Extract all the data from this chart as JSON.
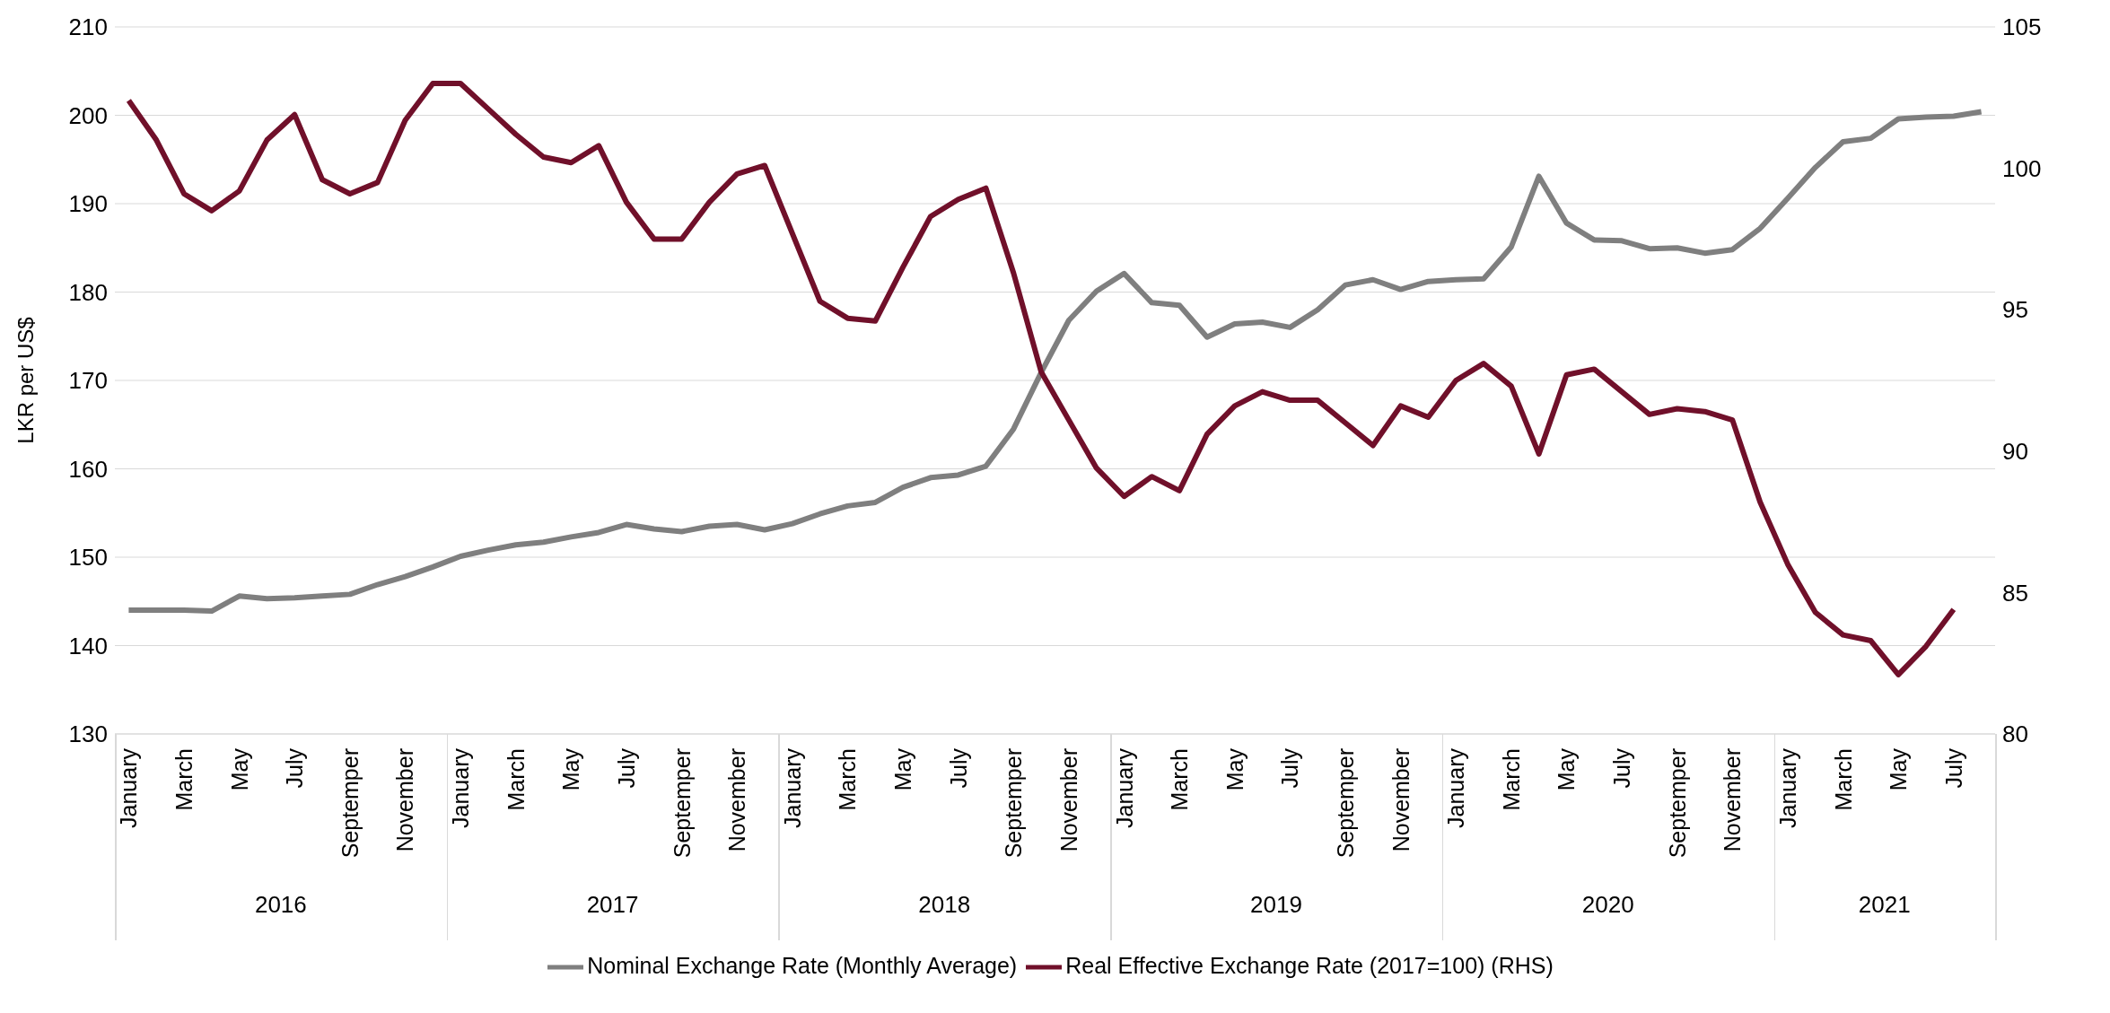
{
  "chart_data": {
    "type": "line",
    "ylabel": "LKR per US$",
    "categories": [
      "January",
      null,
      "March",
      null,
      "May",
      null,
      "July",
      null,
      "Septemper",
      null,
      "November",
      null,
      "January",
      null,
      "March",
      null,
      "May",
      null,
      "July",
      null,
      "Septemper",
      null,
      "November",
      null,
      "January",
      null,
      "March",
      null,
      "May",
      null,
      "July",
      null,
      "Septemper",
      null,
      "November",
      null,
      "January",
      null,
      "March",
      null,
      "May",
      null,
      "July",
      null,
      "Septemper",
      null,
      "November",
      null,
      "January",
      null,
      "March",
      null,
      "May",
      null,
      "July",
      null,
      "Septemper",
      null,
      "November",
      null,
      "January",
      null,
      "March",
      null,
      "May",
      null,
      "July",
      null
    ],
    "annotations": [
      "2016",
      "2017",
      "2018",
      "2019",
      "2020",
      "2021"
    ],
    "series": [
      {
        "name": "Nominal Exchange Rate (Monthly Average)",
        "color": "#7f7f7f",
        "values": [
          144,
          144,
          144,
          143.9,
          145.6,
          145.3,
          145.4,
          145.6,
          145.8,
          146.9,
          147.8,
          148.9,
          150.1,
          150.8,
          151.4,
          151.7,
          152.3,
          152.8,
          153.7,
          153.2,
          152.9,
          153.5,
          153.7,
          153.1,
          153.8,
          154.9,
          155.8,
          156.2,
          157.9,
          159.0,
          159.3,
          160.3,
          164.5,
          170.9,
          176.8,
          180.1,
          182.1,
          178.8,
          178.5,
          174.9,
          176.4,
          176.6,
          176.0,
          178.0,
          180.8,
          181.4,
          180.3,
          181.2,
          181.4,
          181.5,
          185.1,
          193.1,
          187.8,
          185.9,
          185.8,
          184.9,
          185.0,
          184.4,
          184.8,
          187.2,
          190.6,
          194.1,
          197.0,
          197.4,
          199.6,
          199.8,
          199.9,
          200.4
        ]
      },
      {
        "name": "Real Effective Exchange Rate (2017=100) (RHS)",
        "color": "#70102a",
        "axis": "y2",
        "values": [
          102.4,
          101.0,
          99.1,
          98.5,
          99.2,
          101.0,
          101.9,
          99.6,
          99.1,
          99.5,
          101.7,
          103.0,
          103.0,
          102.1,
          101.2,
          100.4,
          100.2,
          100.8,
          98.8,
          97.5,
          97.5,
          98.8,
          99.8,
          100.1,
          97.7,
          95.3,
          94.7,
          94.6,
          96.5,
          98.3,
          98.9,
          99.3,
          96.3,
          92.8,
          91.1,
          89.4,
          88.4,
          89.1,
          88.6,
          90.6,
          91.6,
          92.1,
          91.8,
          91.8,
          91.0,
          90.2,
          91.6,
          91.2,
          92.5,
          93.1,
          92.3,
          89.9,
          92.7,
          92.9,
          92.1,
          91.3,
          91.5,
          91.4,
          91.1,
          88.2,
          86.0,
          84.3,
          83.5,
          83.3,
          82.1,
          83.1,
          84.4,
          null
        ]
      }
    ],
    "ylim": [
      130,
      210
    ],
    "yticks": [
      130,
      140,
      150,
      160,
      170,
      180,
      190,
      200,
      210
    ],
    "y2lim": [
      80,
      105
    ],
    "y2ticks": [
      80,
      85,
      90,
      95,
      100,
      105
    ],
    "grid": "y",
    "legend": "bottom",
    "marker": "none",
    "line_style": "solid"
  }
}
